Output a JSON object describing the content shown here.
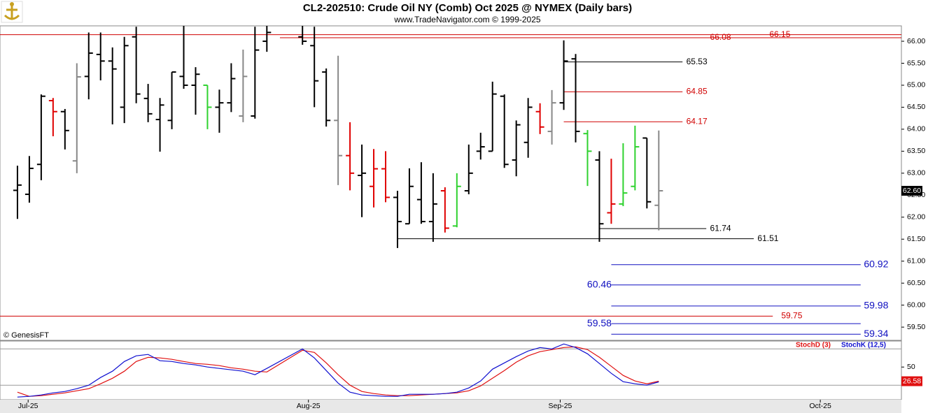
{
  "chart_data": [
    {
      "type": "ohlc",
      "title": "CL2-202510:  Crude Oil NY (Comb) Oct 2025 @ NYMEX  (Daily bars)",
      "subtitle": "www.TradeNavigator.com © 1999-2025",
      "source": "© GenesisFT",
      "x": [
        0,
        1,
        2,
        3,
        4,
        5,
        6,
        7,
        8,
        9,
        10,
        11,
        12,
        13,
        14,
        15,
        16,
        17,
        18,
        19,
        20,
        21,
        24,
        25,
        26,
        27,
        28,
        29,
        30,
        31,
        32,
        33,
        34,
        35,
        36,
        37,
        38,
        39,
        40,
        41,
        42,
        43,
        44,
        45,
        46,
        47,
        48,
        49,
        50,
        51,
        52,
        53,
        54
      ],
      "open": [
        62.61,
        62.52,
        63.2,
        64.65,
        64.4,
        63.28,
        65.2,
        65.7,
        65.55,
        64.5,
        66.1,
        64.7,
        64.22,
        64.2,
        65.2,
        65.0,
        65.0,
        64.5,
        64.6,
        64.3,
        64.3,
        66.0,
        66.1,
        65.9,
        65.3,
        64.2,
        63.4,
        62.95,
        62.7,
        63.1,
        62.45,
        61.85,
        62.4,
        61.9,
        62.6,
        61.8,
        62.6,
        63.5,
        63.5,
        64.75,
        63.3,
        63.7,
        64.4,
        63.95,
        64.6,
        65.6,
        63.9,
        63.3,
        62.1,
        62.3,
        62.7,
        63.8,
        62.27
      ],
      "high": [
        63.17,
        63.39,
        64.79,
        64.71,
        64.46,
        65.5,
        66.2,
        66.2,
        65.86,
        66.1,
        66.33,
        65.03,
        64.71,
        65.3,
        66.35,
        65.41,
        65.0,
        64.9,
        65.5,
        65.81,
        66.33,
        66.35,
        66.35,
        66.33,
        65.38,
        65.67,
        64.16,
        63.65,
        63.55,
        63.5,
        62.6,
        63.11,
        63.25,
        63.0,
        62.68,
        63.0,
        63.65,
        63.92,
        65.08,
        64.79,
        64.2,
        64.71,
        64.59,
        64.89,
        66.02,
        65.71,
        63.98,
        63.5,
        63.33,
        63.68,
        64.08,
        63.8,
        63.97
      ],
      "low": [
        61.96,
        62.33,
        62.84,
        63.84,
        63.54,
        63.0,
        64.68,
        65.11,
        64.11,
        64.14,
        64.59,
        64.16,
        63.49,
        64.0,
        64.92,
        64.33,
        64.0,
        63.92,
        64.39,
        64.16,
        64.24,
        65.76,
        65.92,
        64.5,
        64.06,
        62.73,
        62.61,
        62.0,
        62.22,
        62.34,
        61.3,
        61.85,
        61.85,
        61.44,
        61.65,
        61.77,
        62.52,
        63.31,
        63.5,
        63.12,
        62.93,
        63.35,
        63.89,
        63.65,
        64.44,
        63.7,
        62.71,
        61.44,
        61.85,
        62.25,
        62.61,
        62.2,
        61.7
      ],
      "close": [
        62.73,
        63.11,
        64.75,
        64.4,
        63.97,
        65.19,
        65.73,
        65.55,
        65.37,
        65.9,
        64.8,
        64.35,
        64.55,
        65.3,
        65.0,
        65.25,
        64.5,
        64.6,
        65.15,
        65.2,
        65.8,
        66.2,
        66.0,
        65.1,
        64.2,
        63.4,
        63.0,
        63.0,
        63.1,
        62.45,
        61.9,
        62.7,
        61.9,
        62.3,
        61.75,
        62.7,
        63.0,
        63.6,
        64.8,
        63.2,
        64.1,
        64.5,
        64.05,
        64.6,
        65.55,
        63.95,
        63.5,
        61.85,
        62.3,
        62.55,
        63.6,
        62.35,
        62.6
      ],
      "bar_colors": [
        "#000",
        "#000",
        "#000",
        "#e00000",
        "#000",
        "#888",
        "#000",
        "#000",
        "#000",
        "#000",
        "#000",
        "#000",
        "#000",
        "#000",
        "#000",
        "#000",
        "#2fd22f",
        "#000",
        "#000",
        "#888",
        "#000",
        "#000",
        "#000",
        "#000",
        "#000",
        "#888",
        "#e00000",
        "#000",
        "#e00000",
        "#e00000",
        "#000",
        "#000",
        "#000",
        "#000",
        "#e00000",
        "#2fd22f",
        "#000",
        "#000",
        "#000",
        "#000",
        "#000",
        "#000",
        "#e00000",
        "#888",
        "#000",
        "#000",
        "#2fd22f",
        "#000",
        "#e00000",
        "#2fd22f",
        "#2fd22f",
        "#000",
        "#888"
      ],
      "xlim": [
        -1.47,
        74.43
      ],
      "ylim": [
        59.2,
        66.35
      ],
      "yticks": [
        {
          "value": 59.5,
          "label": "59.50"
        },
        {
          "value": 60,
          "label": "60.00"
        },
        {
          "value": 60.5,
          "label": "60.50"
        },
        {
          "value": 61,
          "label": "61.00"
        },
        {
          "value": 61.5,
          "label": "61.50"
        },
        {
          "value": 62,
          "label": "62.00"
        },
        {
          "value": 62.5,
          "label": "62.50"
        },
        {
          "value": 63,
          "label": "63.00"
        },
        {
          "value": 63.5,
          "label": "63.50"
        },
        {
          "value": 64,
          "label": "64.00"
        },
        {
          "value": 64.5,
          "label": "64.50"
        },
        {
          "value": 65,
          "label": "65.00"
        },
        {
          "value": 65.5,
          "label": "65.50"
        },
        {
          "value": 66,
          "label": "66.00"
        }
      ],
      "levels": [
        {
          "value": 66.15,
          "color": "#d00000",
          "x": [
            -1.47,
            74.43
          ],
          "label_x": 64.2
        },
        {
          "value": 66.08,
          "color": "#d00000",
          "x": [
            22.1,
            74.43
          ],
          "label_x": 59.2
        },
        {
          "value": 65.53,
          "color": "#000000",
          "x": [
            46,
            56
          ],
          "label_x": 57.2
        },
        {
          "value": 64.85,
          "color": "#d00000",
          "x": [
            46,
            56
          ],
          "label_x": 57.2
        },
        {
          "value": 64.17,
          "color": "#d00000",
          "x": [
            46,
            56
          ],
          "label_x": 57.2
        },
        {
          "value": 61.74,
          "color": "#000000",
          "x": [
            49,
            58
          ],
          "label_x": 59.2
        },
        {
          "value": 61.51,
          "color": "#000000",
          "x": [
            32,
            62
          ],
          "label_x": 63.2
        },
        {
          "value": 60.92,
          "color": "#1010c0",
          "x": [
            50,
            71
          ],
          "label_x": 72.3
        },
        {
          "value": 60.46,
          "color": "#1010c0",
          "x": [
            50,
            71
          ],
          "label_x": 49
        },
        {
          "value": 59.98,
          "color": "#1010c0",
          "x": [
            50,
            71
          ],
          "label_x": 72.3
        },
        {
          "value": 59.75,
          "color": "#d00000",
          "x": [
            -1.47,
            63.6
          ],
          "label_x": 65.2
        },
        {
          "value": 59.58,
          "color": "#1010c0",
          "x": [
            50,
            71
          ],
          "label_x": 49
        },
        {
          "value": 59.34,
          "color": "#1010c0",
          "x": [
            50,
            71
          ],
          "label_x": 72.3
        }
      ],
      "price_tag": {
        "value": 62.6,
        "label": "62.60"
      }
    },
    {
      "type": "line",
      "x": [
        0,
        1,
        2,
        3,
        4,
        5,
        6,
        7,
        8,
        9,
        10,
        11,
        12,
        13,
        14,
        15,
        16,
        17,
        18,
        19,
        20,
        21,
        24,
        25,
        26,
        27,
        28,
        29,
        30,
        31,
        32,
        33,
        34,
        35,
        36,
        37,
        38,
        39,
        40,
        41,
        42,
        43,
        44,
        45,
        46,
        47,
        48,
        49,
        50,
        51,
        52,
        53,
        54
      ],
      "series": [
        {
          "name": "StochD (3)",
          "color": "#e01010",
          "values": [
            8.5,
            1.6,
            2.7,
            5,
            7.3,
            10.8,
            14.2,
            22.3,
            31.5,
            43.1,
            59.2,
            66.1,
            65,
            62.7,
            59.2,
            55.8,
            54.6,
            52.3,
            48.8,
            46.5,
            43.1,
            41.9,
            77.7,
            74.2,
            56.9,
            37.3,
            20,
            9.6,
            6.2,
            3.9,
            2.7,
            2.7,
            3.9,
            5,
            6.2,
            7.3,
            10.8,
            18.9,
            31.5,
            44.2,
            58.1,
            68.5,
            75.4,
            78.8,
            82.3,
            83.4,
            78.8,
            66.1,
            51.2,
            36.2,
            26.9,
            22.3,
            26.58
          ]
        },
        {
          "name": "StochK (12,5)",
          "color": "#1010d0",
          "values": [
            0.4,
            1.6,
            3.9,
            7.3,
            9.6,
            14.2,
            20,
            32.7,
            43.1,
            59.2,
            68.5,
            70.8,
            60.4,
            59.2,
            55.8,
            53.5,
            50,
            47.7,
            45.4,
            43.1,
            37.3,
            47.7,
            80,
            65,
            44.2,
            23.5,
            8.5,
            3.9,
            2.7,
            1.6,
            1.6,
            5,
            5,
            5,
            6.2,
            8.5,
            15.4,
            26.9,
            46.5,
            56.9,
            67.3,
            76.5,
            82.3,
            80,
            88.1,
            82.3,
            71.9,
            55.8,
            39.6,
            25.8,
            22.3,
            20,
            25.5
          ]
        }
      ],
      "xlim": [
        -1.47,
        74.43
      ],
      "ylim": [
        -4,
        93
      ],
      "yticks": [
        50
      ],
      "hlines": [
        20,
        80
      ],
      "xticks": [
        {
          "value": 0.9,
          "label": "Jul-25"
        },
        {
          "value": 24.5,
          "label": "Aug-25"
        },
        {
          "value": 45.7,
          "label": "Sep-25"
        },
        {
          "value": 67.6,
          "label": "Oct-25"
        }
      ]
    }
  ]
}
